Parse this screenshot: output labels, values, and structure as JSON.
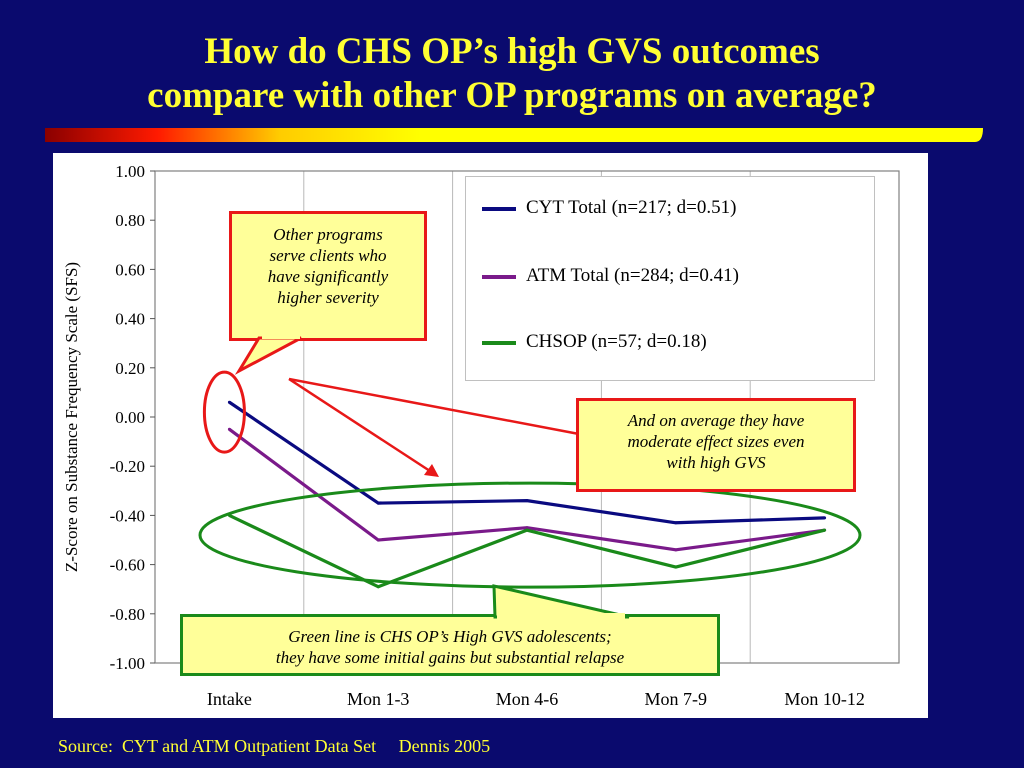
{
  "slide": {
    "title_line1": "How do CHS OP’s high GVS outcomes",
    "title_line2": "compare with other OP programs on average?",
    "source": "Source:  CYT and ATM Outpatient Data Set     Dennis 2005",
    "colors": {
      "background": "#0a0a6e",
      "title": "#ffff33",
      "callout_fill": "#ffff99",
      "callout_border_red": "#e81818",
      "callout_border_green": "#1a8a1a"
    }
  },
  "callouts": {
    "severity": [
      "Other programs",
      "serve clients who",
      "have significantly",
      "higher severity"
    ],
    "effect_sizes": [
      "And on average they have",
      "moderate effect sizes even",
      "with high GVS"
    ],
    "relapse": [
      "Green line is CHS OP’s High GVS adolescents;",
      "they have some initial gains but substantial relapse"
    ]
  },
  "chart_data": {
    "type": "line",
    "title": "",
    "xlabel": "",
    "ylabel": "Z-Score on Substance Frequency Scale (SFS)",
    "categories": [
      "Intake",
      "Mon 1-3",
      "Mon 4-6",
      "Mon 7-9",
      "Mon 10-12"
    ],
    "ylim": [
      -1.0,
      1.0
    ],
    "yticks": [
      "1.00",
      "0.80",
      "0.60",
      "0.40",
      "0.20",
      "0.00",
      "-0.20",
      "-0.40",
      "-0.60",
      "-0.80",
      "-1.00"
    ],
    "grid": "vertical",
    "legend_position": "top-right",
    "series": [
      {
        "name": "CYT Total (n=217; d=0.51)",
        "color": "#0a0a80",
        "values": [
          0.06,
          -0.35,
          -0.34,
          -0.43,
          -0.41
        ]
      },
      {
        "name": "ATM Total (n=284; d=0.41)",
        "color": "#7a1a8a",
        "values": [
          -0.05,
          -0.5,
          -0.45,
          -0.54,
          -0.46
        ]
      },
      {
        "name": "CHSOP (n=57; d=0.18)",
        "color": "#1a8a1a",
        "values": [
          -0.4,
          -0.69,
          -0.46,
          -0.61,
          -0.46
        ]
      }
    ]
  }
}
